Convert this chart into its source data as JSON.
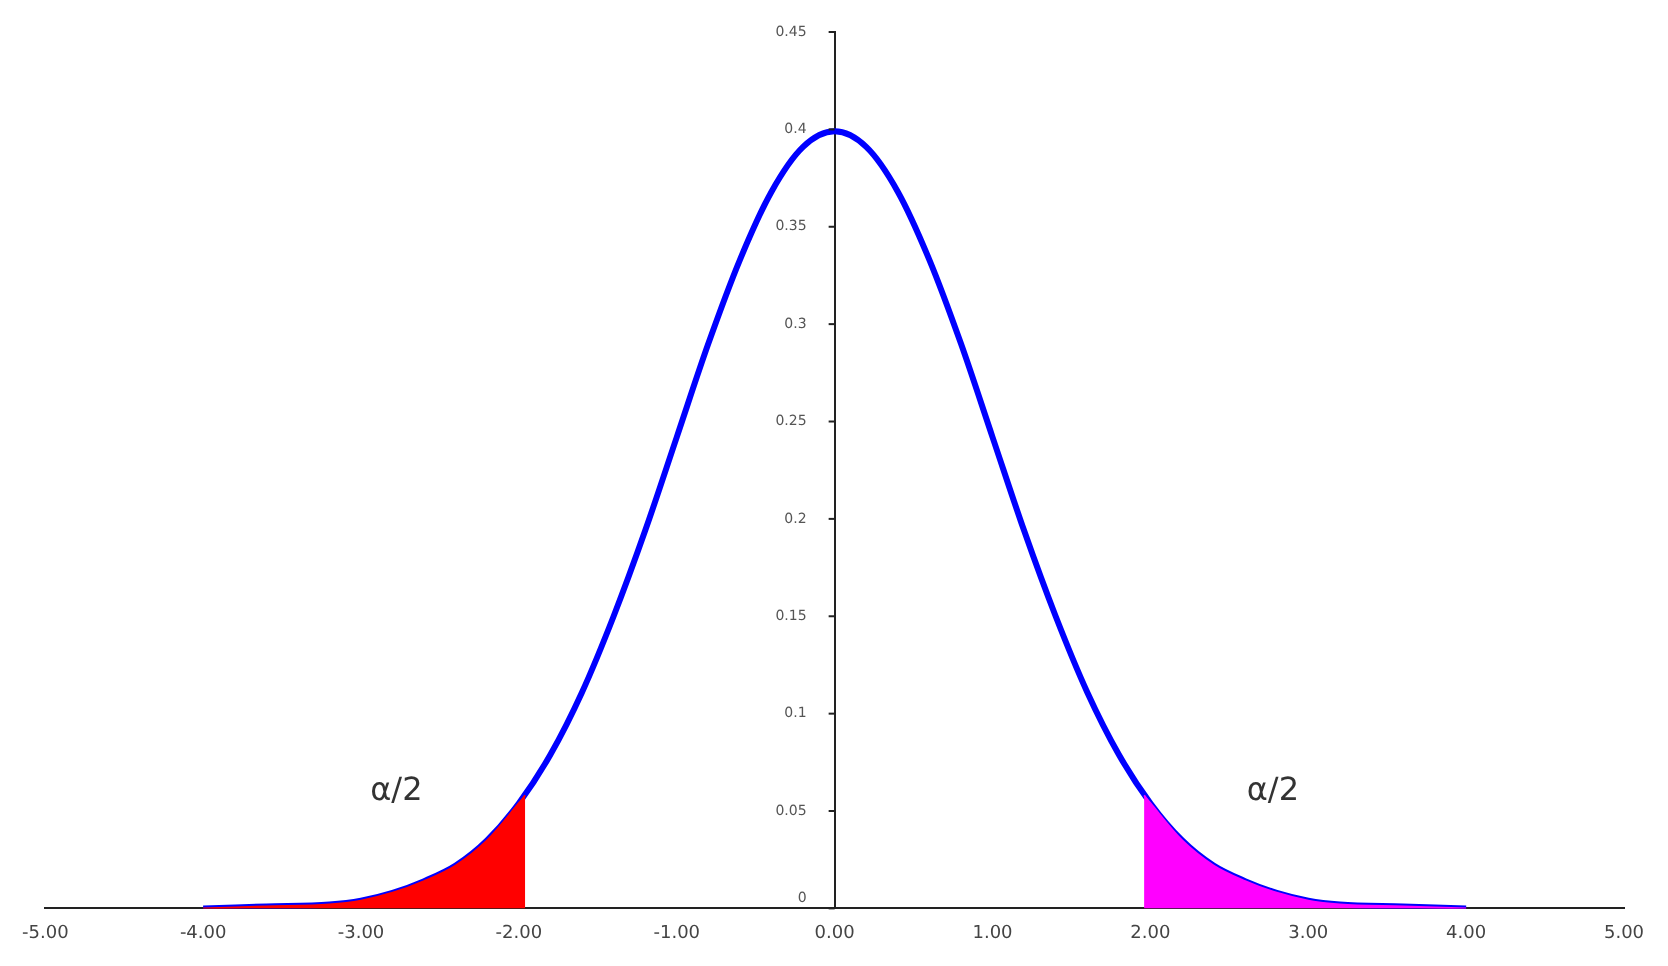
{
  "chart_data": {
    "type": "line",
    "series": [
      {
        "type": "area",
        "color": "#ff0000",
        "x": [
          -4,
          -3.6,
          -3.2,
          -3,
          -2.8,
          -2.6,
          -2.4,
          -2.2,
          -2,
          -1.96
        ],
        "values": [
          0,
          0.001,
          0.002,
          0.004,
          0.008,
          0.014,
          0.022,
          0.035,
          0.054,
          0.058
        ]
      },
      {
        "type": "area",
        "color": "#ff00ff",
        "x": [
          1.96,
          2,
          2.2,
          2.4,
          2.6,
          2.8,
          3,
          3.2,
          3.6,
          4
        ],
        "values": [
          0.058,
          0.054,
          0.035,
          0.022,
          0.014,
          0.008,
          0.004,
          0.002,
          0.001,
          0
        ]
      },
      {
        "color": "#0000ff",
        "x": [
          -4,
          -3.6,
          -3.2,
          -3,
          -2.8,
          -2.6,
          -2.4,
          -2.2,
          -2,
          -1.8,
          -1.6,
          -1.4,
          -1.2,
          -1,
          -0.8,
          -0.6,
          -0.4,
          -0.2,
          0,
          0.2,
          0.4,
          0.6,
          0.8,
          1,
          1.2,
          1.4,
          1.6,
          1.8,
          2,
          2.2,
          2.4,
          2.6,
          2.8,
          3,
          3.2,
          3.6,
          4
        ],
        "values": [
          0,
          0.001,
          0.002,
          0.004,
          0.008,
          0.014,
          0.022,
          0.035,
          0.054,
          0.079,
          0.111,
          0.15,
          0.194,
          0.242,
          0.29,
          0.333,
          0.368,
          0.391,
          0.399,
          0.391,
          0.368,
          0.333,
          0.29,
          0.242,
          0.194,
          0.15,
          0.111,
          0.079,
          0.054,
          0.035,
          0.022,
          0.014,
          0.008,
          0.004,
          0.002,
          0.001,
          0
        ]
      }
    ],
    "xlim": [
      -5,
      5
    ],
    "xticks": [
      {
        "value": -5,
        "label": "-5.00"
      },
      {
        "value": -4,
        "label": "-4.00"
      },
      {
        "value": -3,
        "label": "-3.00"
      },
      {
        "value": -2,
        "label": "-2.00"
      },
      {
        "value": -1,
        "label": "-1.00"
      },
      {
        "value": 0,
        "label": "0.00"
      },
      {
        "value": 1,
        "label": "1.00"
      },
      {
        "value": 2,
        "label": "2.00"
      },
      {
        "value": 3,
        "label": "3.00"
      },
      {
        "value": 4,
        "label": "4.00"
      },
      {
        "value": 5,
        "label": "5.00"
      }
    ],
    "ylim": [
      0,
      0.45
    ],
    "yticks": [
      0,
      0.05,
      0.1,
      0.15,
      0.2,
      0.25,
      0.3,
      0.35,
      0.4,
      0.45
    ],
    "grid": false,
    "legend": false,
    "marker": "none",
    "line_style": "solid",
    "annotations": [
      "α/2",
      "α/2"
    ]
  }
}
